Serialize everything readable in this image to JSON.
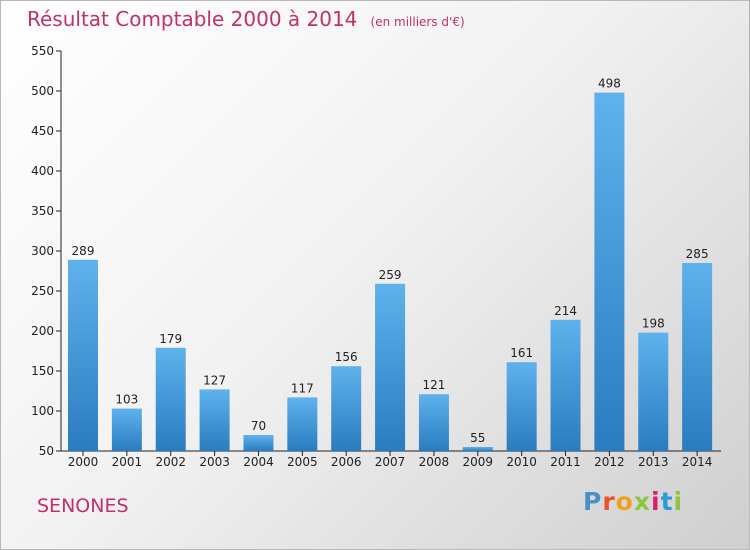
{
  "title": "Résultat Comptable 2000 à 2014",
  "subtitle": "(en milliers d'€)",
  "city": "SENONES",
  "logo": {
    "letters": [
      "P",
      "r",
      "o",
      "x",
      "i",
      "t",
      "i"
    ],
    "colors": [
      "#4a90c8",
      "#e8532e",
      "#f3a11d",
      "#8cc63f",
      "#d9216b",
      "#2a9bd6",
      "#8cc63f"
    ]
  },
  "colors": {
    "title": "#c0306a",
    "bar_light": "#5fb2ec",
    "bar_dark": "#2a7cc0",
    "axis": "#222222"
  },
  "chart_data": {
    "type": "bar",
    "title": "Résultat Comptable 2000 à 2014",
    "xlabel": "",
    "ylabel": "",
    "categories": [
      "2000",
      "2001",
      "2002",
      "2003",
      "2004",
      "2005",
      "2006",
      "2007",
      "2008",
      "2009",
      "2010",
      "2011",
      "2012",
      "2013",
      "2014"
    ],
    "values": [
      289,
      103,
      179,
      127,
      70,
      117,
      156,
      259,
      121,
      55,
      161,
      214,
      498,
      198,
      285
    ],
    "ylim": [
      50,
      550
    ],
    "yticks": [
      50,
      100,
      150,
      200,
      250,
      300,
      350,
      400,
      450,
      500,
      550
    ],
    "grid": false,
    "legend": "none"
  }
}
